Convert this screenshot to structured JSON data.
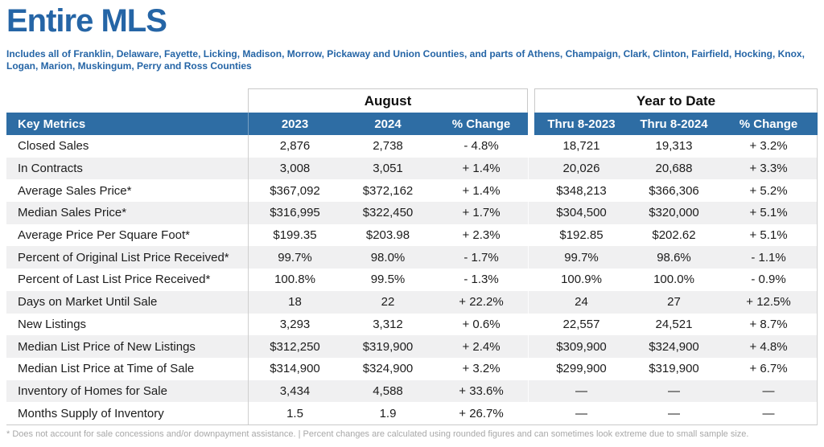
{
  "page": {
    "title": "Entire MLS",
    "subtitle": "Includes all of Franklin, Delaware, Fayette, Licking, Madison, Morrow, Pickaway and Union Counties, and parts of Athens, Champaign, Clark, Clinton, Fairfield, Hocking, Knox, Logan, Marion, Muskingum, Perry and Ross Counties",
    "footnote": "* Does not account for sale concessions and/or downpayment assistance. | Percent changes are calculated using rounded figures and can sometimes look extreme due to small sample size."
  },
  "colors": {
    "title_blue": "#2565a6",
    "header_bar_blue": "#2e6da4",
    "alt_row_gray": "#f0f0f1",
    "border_gray": "#c9c9c9",
    "footnote_gray": "#a8a8a8"
  },
  "table": {
    "group_headers": {
      "august": "August",
      "year_to_date": "Year to Date"
    },
    "columns": {
      "metric": "Key Metrics",
      "aug_2023": "2023",
      "aug_2024": "2024",
      "aug_change": "% Change",
      "ytd_2023": "Thru 8-2023",
      "ytd_2024": "Thru 8-2024",
      "ytd_change": "% Change"
    },
    "rows": [
      [
        "Closed Sales",
        "2,876",
        "2,738",
        "- 4.8%",
        "18,721",
        "19,313",
        "+ 3.2%"
      ],
      [
        "In Contracts",
        "3,008",
        "3,051",
        "+ 1.4%",
        "20,026",
        "20,688",
        "+ 3.3%"
      ],
      [
        "Average Sales Price*",
        "$367,092",
        "$372,162",
        "+ 1.4%",
        "$348,213",
        "$366,306",
        "+ 5.2%"
      ],
      [
        "Median Sales Price*",
        "$316,995",
        "$322,450",
        "+ 1.7%",
        "$304,500",
        "$320,000",
        "+ 5.1%"
      ],
      [
        "Average Price Per Square Foot*",
        "$199.35",
        "$203.98",
        "+ 2.3%",
        "$192.85",
        "$202.62",
        "+ 5.1%"
      ],
      [
        "Percent of Original List Price Received*",
        "99.7%",
        "98.0%",
        "- 1.7%",
        "99.7%",
        "98.6%",
        "- 1.1%"
      ],
      [
        "Percent of Last List Price Received*",
        "100.8%",
        "99.5%",
        "- 1.3%",
        "100.9%",
        "100.0%",
        "- 0.9%"
      ],
      [
        "Days on Market Until Sale",
        "18",
        "22",
        "+ 22.2%",
        "24",
        "27",
        "+ 12.5%"
      ],
      [
        "New Listings",
        "3,293",
        "3,312",
        "+ 0.6%",
        "22,557",
        "24,521",
        "+ 8.7%"
      ],
      [
        "Median List Price of New Listings",
        "$312,250",
        "$319,900",
        "+ 2.4%",
        "$309,900",
        "$324,900",
        "+ 4.8%"
      ],
      [
        "Median List Price at Time of Sale",
        "$314,900",
        "$324,900",
        "+ 3.2%",
        "$299,900",
        "$319,900",
        "+ 6.7%"
      ],
      [
        "Inventory of Homes for Sale",
        "3,434",
        "4,588",
        "+ 33.6%",
        "—",
        "—",
        "—"
      ],
      [
        "Months Supply of Inventory",
        "1.5",
        "1.9",
        "+ 26.7%",
        "—",
        "—",
        "—"
      ]
    ]
  }
}
